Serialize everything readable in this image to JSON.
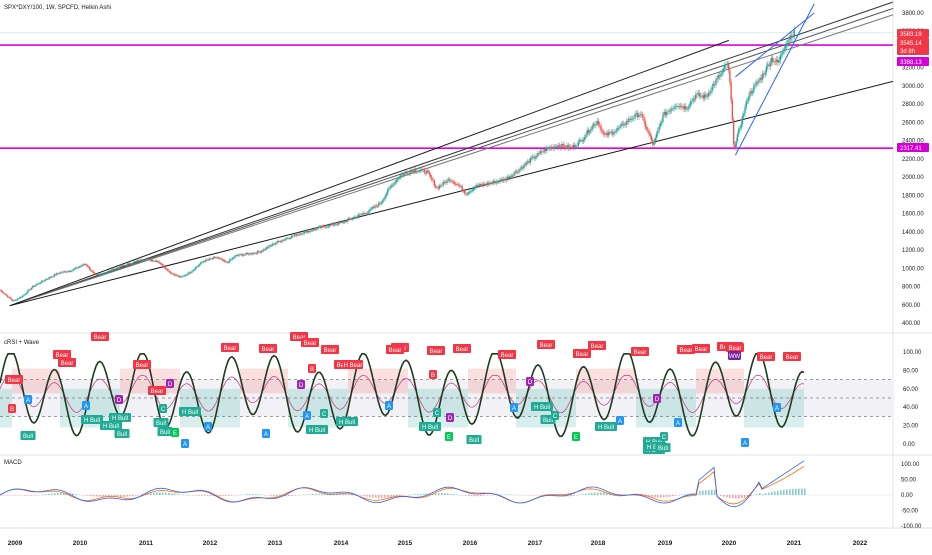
{
  "header": {
    "symbol_line": "SPX*DXY/100, 1W, SPCFD, Heikin Ashi"
  },
  "price_pane": {
    "y_ticks": [
      3800,
      3600,
      3400,
      3200,
      3000,
      2800,
      2600,
      2400,
      2200,
      2000,
      1800,
      1600,
      1400,
      1200,
      1000,
      800,
      600,
      400
    ],
    "price_tags": [
      {
        "text": "3583.19",
        "value": 3583.19,
        "color": "#f23645"
      },
      {
        "text": "3545.14",
        "value": 3545.14,
        "color": "#f23645"
      },
      {
        "text": "3d 8h",
        "value": 3500,
        "color": "#f23645"
      },
      {
        "text": "3388.13",
        "value": 3388.13,
        "color": "#d500d5"
      },
      {
        "text": "2317.41",
        "value": 2317.41,
        "color": "#d500d5"
      }
    ],
    "horizontal_levels": [
      3448,
      2317.41
    ],
    "level_color": "#e100e1"
  },
  "rsi_pane": {
    "title": "cRSI + Wave",
    "y_ticks": [
      "100.00",
      "80.00",
      "60.00",
      "40.00",
      "20.00",
      "0.00"
    ],
    "bands": [
      70,
      50,
      30
    ],
    "bear_labels": [
      "Bear",
      "Bear",
      "Bear",
      "Bear",
      "Bear",
      "Bear",
      "Bear",
      "Bear",
      "Bear",
      "Bear",
      "Bear",
      "Bear",
      "Bear",
      "Bear",
      "Bear",
      "Bear",
      "Bear",
      "Bear",
      "Bear",
      "Bear",
      "Bear",
      "Bear",
      "Bear",
      "Bear",
      "Bear",
      "Bear",
      "Bear",
      "Bear"
    ],
    "bull_labels": [
      "Bull",
      "H Bull",
      "H Bull",
      "Bull",
      "Bull",
      "Bull",
      "H Bull",
      "H Bull",
      "H Bull",
      "H Bull",
      "H Bull",
      "Bull",
      "H Bull",
      "H Bull",
      "H Bull",
      "H Bull",
      "H Bull",
      "Bull",
      "Bull"
    ],
    "hbear_label": "H Bear",
    "a_label": "A",
    "b_label": "B",
    "c_label": "C",
    "d_label": "D",
    "e_label": "E",
    "ww_label": "WW"
  },
  "macd_pane": {
    "title": "MACD",
    "y_ticks": [
      "100.00",
      "50.00",
      "0.00",
      "-50.00",
      "-100.00"
    ]
  },
  "time_axis": {
    "labels": [
      "2009",
      "2010",
      "2011",
      "2012",
      "2013",
      "2014",
      "2015",
      "2016",
      "2017",
      "2018",
      "2019",
      "2020",
      "2021",
      "2022"
    ]
  },
  "chart_data": {
    "type": "line",
    "title": "SPX*DXY/100, 1W, SPCFD, Heikin Ashi",
    "x_range": [
      2009.0,
      2022.6
    ],
    "ylim": [
      350,
      3900
    ],
    "log_scale": false,
    "series": [
      {
        "name": "SPX*DXY/100",
        "points": [
          [
            2009.0,
            760
          ],
          [
            2009.1,
            700
          ],
          [
            2009.2,
            640
          ],
          [
            2009.35,
            700
          ],
          [
            2009.5,
            800
          ],
          [
            2009.7,
            880
          ],
          [
            2009.9,
            950
          ],
          [
            2010.1,
            980
          ],
          [
            2010.3,
            1050
          ],
          [
            2010.45,
            920
          ],
          [
            2010.6,
            950
          ],
          [
            2010.8,
            1010
          ],
          [
            2011.0,
            1060
          ],
          [
            2011.2,
            1100
          ],
          [
            2011.4,
            1080
          ],
          [
            2011.6,
            950
          ],
          [
            2011.75,
            900
          ],
          [
            2011.9,
            960
          ],
          [
            2012.1,
            1080
          ],
          [
            2012.3,
            1120
          ],
          [
            2012.45,
            1060
          ],
          [
            2012.6,
            1140
          ],
          [
            2012.8,
            1160
          ],
          [
            2012.95,
            1180
          ],
          [
            2013.2,
            1280
          ],
          [
            2013.4,
            1340
          ],
          [
            2013.6,
            1390
          ],
          [
            2013.8,
            1430
          ],
          [
            2013.95,
            1460
          ],
          [
            2014.2,
            1500
          ],
          [
            2014.4,
            1560
          ],
          [
            2014.6,
            1620
          ],
          [
            2014.8,
            1720
          ],
          [
            2014.95,
            1900
          ],
          [
            2015.1,
            2020
          ],
          [
            2015.3,
            2080
          ],
          [
            2015.5,
            2060
          ],
          [
            2015.65,
            1880
          ],
          [
            2015.85,
            1980
          ],
          [
            2016.0,
            1900
          ],
          [
            2016.1,
            1820
          ],
          [
            2016.25,
            1900
          ],
          [
            2016.5,
            1940
          ],
          [
            2016.7,
            1980
          ],
          [
            2016.9,
            2080
          ],
          [
            2017.1,
            2200
          ],
          [
            2017.3,
            2300
          ],
          [
            2017.5,
            2350
          ],
          [
            2017.7,
            2320
          ],
          [
            2017.85,
            2400
          ],
          [
            2017.95,
            2500
          ],
          [
            2018.1,
            2620
          ],
          [
            2018.2,
            2450
          ],
          [
            2018.4,
            2520
          ],
          [
            2018.6,
            2640
          ],
          [
            2018.75,
            2700
          ],
          [
            2018.9,
            2440
          ],
          [
            2018.95,
            2350
          ],
          [
            2019.1,
            2680
          ],
          [
            2019.3,
            2800
          ],
          [
            2019.45,
            2760
          ],
          [
            2019.6,
            2900
          ],
          [
            2019.75,
            2880
          ],
          [
            2019.9,
            3050
          ],
          [
            2020.0,
            3150
          ],
          [
            2020.08,
            3250
          ],
          [
            2020.12,
            3000
          ],
          [
            2020.18,
            2300
          ],
          [
            2020.25,
            2500
          ],
          [
            2020.4,
            2900
          ],
          [
            2020.6,
            3100
          ],
          [
            2020.75,
            3300
          ],
          [
            2020.85,
            3250
          ],
          [
            2020.95,
            3450
          ],
          [
            2021.05,
            3560
          ],
          [
            2021.1,
            3583
          ]
        ]
      }
    ],
    "drawings": [
      {
        "kind": "trendline",
        "from": [
          2009.15,
          590
        ],
        "to": [
          2022.6,
          3920
        ],
        "color": "#333333"
      },
      {
        "kind": "trendline",
        "from": [
          2009.15,
          590
        ],
        "to": [
          2022.6,
          3850
        ],
        "color": "#555555"
      },
      {
        "kind": "trendline",
        "from": [
          2009.15,
          590
        ],
        "to": [
          2022.6,
          3780
        ],
        "color": "#777777"
      },
      {
        "kind": "trendline",
        "from": [
          2009.15,
          590
        ],
        "to": [
          2022.6,
          3050
        ],
        "color": "#111111"
      },
      {
        "kind": "trendline",
        "from": [
          2020.2,
          2240
        ],
        "to": [
          2021.4,
          3900
        ],
        "color": "#2962ff"
      },
      {
        "kind": "trendline",
        "from": [
          2020.2,
          3100
        ],
        "to": [
          2021.4,
          3800
        ],
        "color": "#2962ff"
      },
      {
        "kind": "trendline",
        "from": [
          2009.15,
          590
        ],
        "to": [
          2020.1,
          3500
        ],
        "color": "#1e1e1e"
      }
    ]
  }
}
